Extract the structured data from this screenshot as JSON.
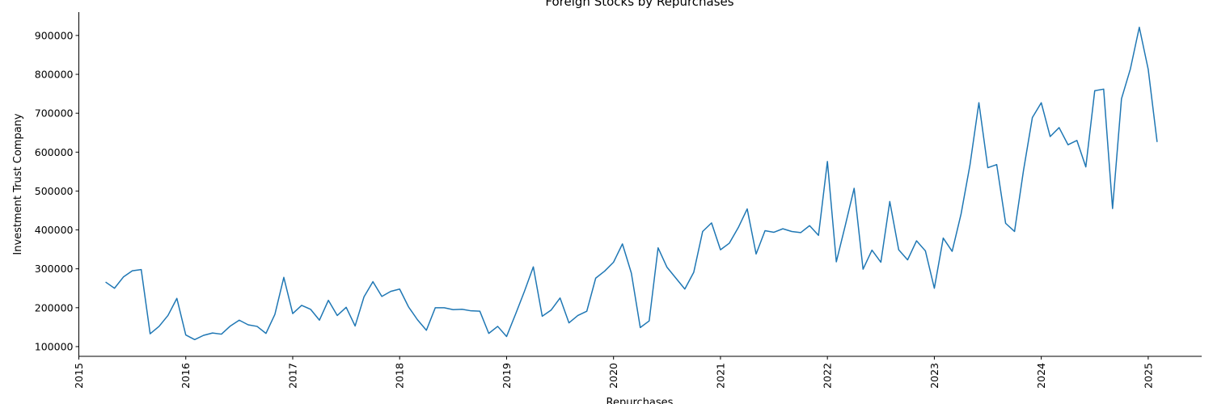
{
  "chart_data": {
    "type": "line",
    "title": "Foreign Stocks by Repurchases",
    "xlabel": "Repurchases",
    "ylabel": "Investment Trust Company",
    "xlim": [
      "2015-01",
      "2025-07"
    ],
    "ylim": [
      75000,
      960000
    ],
    "x_ticks": [
      "2015",
      "2016",
      "2017",
      "2018",
      "2019",
      "2020",
      "2021",
      "2022",
      "2023",
      "2024",
      "2025"
    ],
    "y_ticks": [
      "100000",
      "200000",
      "300000",
      "400000",
      "500000",
      "600000",
      "700000",
      "800000",
      "900000"
    ],
    "y_tick_values": [
      100000,
      200000,
      300000,
      400000,
      500000,
      600000,
      700000,
      800000,
      900000
    ],
    "grid": false,
    "line_color": "#1f77b4",
    "series": [
      {
        "x": [
          "2015-04",
          "2015-05",
          "2015-06",
          "2015-07",
          "2015-08",
          "2015-09",
          "2015-10",
          "2015-11",
          "2015-12",
          "2016-01",
          "2016-02",
          "2016-03",
          "2016-04",
          "2016-05",
          "2016-06",
          "2016-07",
          "2016-08",
          "2016-09",
          "2016-10",
          "2016-11",
          "2016-12",
          "2017-01",
          "2017-02",
          "2017-03",
          "2017-04",
          "2017-05",
          "2017-06",
          "2017-07",
          "2017-08",
          "2017-09",
          "2017-10",
          "2017-11",
          "2017-12",
          "2018-01",
          "2018-02",
          "2018-03",
          "2018-04",
          "2018-05",
          "2018-06",
          "2018-07",
          "2018-08",
          "2018-09",
          "2018-10",
          "2018-11",
          "2018-12",
          "2019-01",
          "2019-02",
          "2019-03",
          "2019-04",
          "2019-05",
          "2019-06",
          "2019-07",
          "2019-08",
          "2019-09",
          "2019-10",
          "2019-11",
          "2019-12",
          "2020-01",
          "2020-02",
          "2020-03",
          "2020-04",
          "2020-05",
          "2020-06",
          "2020-07",
          "2020-08",
          "2020-09",
          "2020-10",
          "2020-11",
          "2020-12",
          "2021-01",
          "2021-02",
          "2021-03",
          "2021-04",
          "2021-05",
          "2021-06",
          "2021-07",
          "2021-08",
          "2021-09",
          "2021-10",
          "2021-11",
          "2021-12",
          "2022-01",
          "2022-02",
          "2022-03",
          "2022-04",
          "2022-05",
          "2022-06",
          "2022-07",
          "2022-08",
          "2022-09",
          "2022-10",
          "2022-11",
          "2022-12",
          "2023-01",
          "2023-02",
          "2023-03",
          "2023-04",
          "2023-05",
          "2023-06",
          "2023-07",
          "2023-08",
          "2023-09",
          "2023-10",
          "2023-11",
          "2023-12",
          "2024-01",
          "2024-02",
          "2024-03",
          "2024-04",
          "2024-05",
          "2024-06",
          "2024-07",
          "2024-08",
          "2024-09",
          "2024-10",
          "2024-11",
          "2024-12",
          "2025-01",
          "2025-02"
        ],
        "values": [
          266000,
          250000,
          279000,
          295000,
          298000,
          133000,
          152000,
          180000,
          224000,
          130000,
          118000,
          129000,
          135000,
          132000,
          153000,
          168000,
          156000,
          152000,
          134000,
          183000,
          278000,
          185000,
          206000,
          196000,
          168000,
          219000,
          180000,
          201000,
          153000,
          228000,
          267000,
          229000,
          242000,
          248000,
          202000,
          169000,
          142000,
          200000,
          200000,
          195000,
          196000,
          192000,
          191000,
          134000,
          152000,
          126000,
          183000,
          242000,
          305000,
          178000,
          194000,
          225000,
          161000,
          180000,
          191000,
          276000,
          294000,
          317000,
          364000,
          289000,
          149000,
          166000,
          354000,
          304000,
          276000,
          248000,
          291000,
          396000,
          418000,
          349000,
          366000,
          406000,
          454000,
          338000,
          398000,
          394000,
          403000,
          396000,
          393000,
          411000,
          386000,
          576000,
          318000,
          411000,
          507000,
          299000,
          348000,
          317000,
          473000,
          349000,
          323000,
          372000,
          346000,
          250000,
          379000,
          345000,
          441000,
          567000,
          727000,
          560000,
          568000,
          417000,
          396000,
          552000,
          689000,
          727000,
          640000,
          663000,
          619000,
          630000,
          562000,
          758000,
          762000,
          455000,
          737000,
          814000,
          921000,
          813000,
          626000
        ]
      }
    ]
  }
}
